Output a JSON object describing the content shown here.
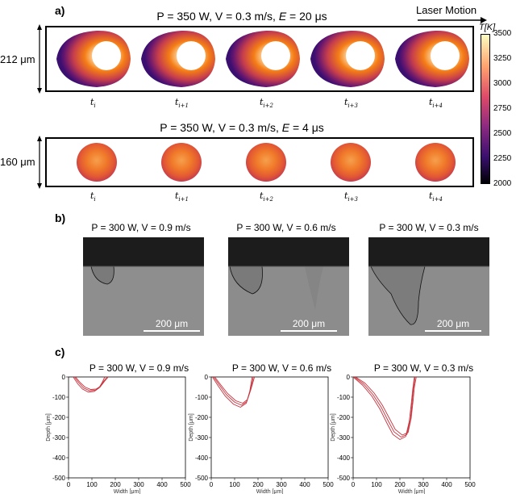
{
  "panel_a": {
    "label": "a)",
    "laser_motion": "Laser Motion",
    "colorbar": {
      "label": "T[K]",
      "ticks": [
        "3500",
        "3250",
        "3000",
        "2750",
        "2500",
        "2250",
        "2000"
      ],
      "min": 2000,
      "max": 3500,
      "colormap": "inferno"
    },
    "rows": [
      {
        "title": "P = 350 W, V = 0.3 m/s, E = 20 μs",
        "title_prefix": "P = 350 W, V = 0.3 m/s, ",
        "title_var": "E",
        "title_suffix": " = 20 μs",
        "side_label": "212 μm",
        "time_labels": [
          {
            "base": "t",
            "sub": "i"
          },
          {
            "base": "t",
            "sub": "i+1"
          },
          {
            "base": "t",
            "sub": "i+2"
          },
          {
            "base": "t",
            "sub": "i+3"
          },
          {
            "base": "t",
            "sub": "i+4"
          }
        ]
      },
      {
        "title": "P = 350 W, V = 0.3 m/s, E = 4 μs",
        "title_prefix": "P = 350 W, V = 0.3 m/s, ",
        "title_var": "E",
        "title_suffix": " = 4 μs",
        "side_label": "160 μm",
        "time_labels": [
          {
            "base": "t",
            "sub": "i"
          },
          {
            "base": "t",
            "sub": "i+1"
          },
          {
            "base": "t",
            "sub": "i+2"
          },
          {
            "base": "t",
            "sub": "i+3"
          },
          {
            "base": "t",
            "sub": "i+4"
          }
        ]
      }
    ]
  },
  "panel_b": {
    "label": "b)",
    "images": [
      {
        "title": "P = 300 W, V = 0.9 m/s",
        "scale": "200 μm"
      },
      {
        "title": "P = 300 W, V = 0.6 m/s",
        "scale": "200 μm"
      },
      {
        "title": "P = 300 W, V = 0.3 m/s",
        "scale": "200 μm"
      }
    ]
  },
  "panel_c": {
    "label": "c)",
    "chart_data": [
      {
        "type": "line",
        "title": "P = 300 W, V = 0.9 m/s",
        "xlabel": "Width [μm]",
        "ylabel": "Depth [μm]",
        "xlim": [
          0,
          500
        ],
        "ylim": [
          -500,
          0
        ],
        "xticks": [
          "0",
          "100",
          "200",
          "300",
          "400",
          "500"
        ],
        "yticks": [
          "0",
          "-100",
          "-200",
          "-300",
          "-400",
          "-500"
        ],
        "series": [
          {
            "x": [
              20,
              40,
              60,
              85,
              110,
              130,
              145,
              155
            ],
            "y": [
              0,
              -35,
              -60,
              -75,
              -72,
              -55,
              -25,
              0
            ]
          },
          {
            "x": [
              25,
              45,
              65,
              90,
              115,
              135,
              150,
              165
            ],
            "y": [
              0,
              -30,
              -55,
              -68,
              -66,
              -50,
              -22,
              0
            ]
          },
          {
            "x": [
              30,
              50,
              70,
              95,
              118,
              138,
              155,
              170
            ],
            "y": [
              0,
              -28,
              -50,
              -62,
              -60,
              -45,
              -20,
              0
            ]
          }
        ]
      },
      {
        "type": "line",
        "title": "P = 300 W, V = 0.6 m/s",
        "xlabel": "Width [μm]",
        "ylabel": "Depth [μm]",
        "xlim": [
          0,
          500
        ],
        "ylim": [
          -500,
          0
        ],
        "xticks": [
          "0",
          "100",
          "200",
          "300",
          "400",
          "500"
        ],
        "yticks": [
          "0",
          "-100",
          "-200",
          "-300",
          "-400",
          "-500"
        ],
        "series": [
          {
            "x": [
              5,
              30,
              60,
              95,
              125,
              150,
              165,
              175
            ],
            "y": [
              0,
              -45,
              -95,
              -135,
              -150,
              -130,
              -70,
              0
            ]
          },
          {
            "x": [
              10,
              35,
              65,
              100,
              130,
              152,
              168,
              180
            ],
            "y": [
              0,
              -40,
              -88,
              -125,
              -140,
              -122,
              -65,
              0
            ]
          },
          {
            "x": [
              15,
              40,
              70,
              105,
              135,
              155,
              170,
              185
            ],
            "y": [
              0,
              -38,
              -82,
              -118,
              -130,
              -112,
              -60,
              0
            ]
          }
        ]
      },
      {
        "type": "line",
        "title": "P = 300 W, V = 0.3 m/s",
        "xlabel": "Width [μm]",
        "ylabel": "Depth [μm]",
        "xlim": [
          0,
          500
        ],
        "ylim": [
          -500,
          0
        ],
        "xticks": [
          "0",
          "100",
          "200",
          "300",
          "400",
          "500"
        ],
        "yticks": [
          "0",
          "-100",
          "-200",
          "-300",
          "-400",
          "-500"
        ],
        "series": [
          {
            "x": [
              0,
              40,
              80,
              115,
              145,
              170,
              200,
              225,
              240,
              248,
              255,
              262
            ],
            "y": [
              0,
              -40,
              -95,
              -160,
              -230,
              -285,
              -310,
              -295,
              -220,
              -140,
              -60,
              0
            ]
          },
          {
            "x": [
              5,
              45,
              85,
              120,
              150,
              175,
              205,
              230,
              245,
              252,
              258,
              265
            ],
            "y": [
              0,
              -35,
              -88,
              -150,
              -218,
              -272,
              -298,
              -285,
              -212,
              -130,
              -55,
              0
            ]
          },
          {
            "x": [
              10,
              50,
              90,
              125,
              155,
              180,
              210,
              235,
              248,
              256,
              262,
              270
            ],
            "y": [
              0,
              -30,
              -80,
              -140,
              -205,
              -260,
              -288,
              -275,
              -205,
              -122,
              -50,
              0
            ]
          }
        ]
      }
    ]
  }
}
